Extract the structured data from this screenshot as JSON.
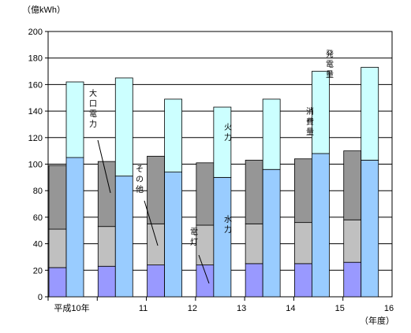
{
  "chart_data": {
    "type": "bar",
    "unit_label": "（億kWh）",
    "ylim": [
      0,
      200
    ],
    "yticks": [
      0,
      20,
      40,
      60,
      80,
      100,
      120,
      140,
      160,
      180,
      200
    ],
    "categories": [
      "平成10年",
      "11",
      "12",
      "13",
      "14",
      "15",
      "16"
    ],
    "x_unit": "（年度）",
    "consumption_segments": [
      {
        "name": "電灯",
        "color": "#9999ff",
        "values": [
          22,
          23,
          24,
          24,
          25,
          25,
          26
        ]
      },
      {
        "name": "その他",
        "color": "#c0c0c0",
        "values": [
          29,
          30,
          31,
          30,
          30,
          31,
          32
        ]
      },
      {
        "name": "大口電力",
        "color": "#969696",
        "values": [
          48,
          49,
          51,
          47,
          48,
          48,
          52
        ]
      }
    ],
    "generation_segments": [
      {
        "name": "水力",
        "color": "#99ccff",
        "values": [
          105,
          91,
          94,
          90,
          96,
          108,
          103
        ]
      },
      {
        "name": "火力",
        "color": "#ccffff",
        "values": [
          57,
          74,
          55,
          53,
          53,
          62,
          70
        ]
      }
    ],
    "annotations": {
      "consumption": "消費量",
      "generation": "発電量",
      "large_power": "大口電力",
      "other": "その他",
      "lighting": "電灯",
      "thermal": "火力",
      "hydro": "水力"
    }
  }
}
